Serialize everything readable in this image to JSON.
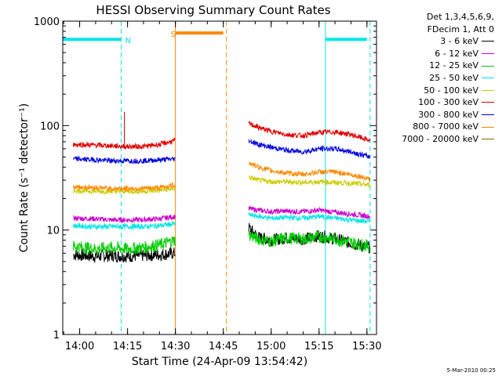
{
  "chart_data": {
    "type": "line",
    "title": "HESSI Observing Summary Count Rates",
    "xlabel": "Start Time (24-Apr-09 13:54:42)",
    "ylabel": "Count Rate (s⁻¹ detector⁻¹)",
    "yscale": "log",
    "ylim": [
      1,
      1000
    ],
    "xlim": [
      "13:54:42",
      "15:33:00"
    ],
    "x_tick_labels": [
      "14:00",
      "14:15",
      "14:30",
      "14:45",
      "15:00",
      "15:15",
      "15:30"
    ],
    "y_tick_labels": [
      "1",
      "10",
      "100",
      "1000"
    ],
    "legend_header": [
      "Det 1,3,4,5,6,9,",
      "FDecim 1, Att 0"
    ],
    "legend_position": "top-right",
    "series": [
      {
        "name": "3 - 6 keV",
        "color": "#000000",
        "x": [
          "13:58",
          "14:05",
          "14:10",
          "14:15",
          "14:20",
          "14:25",
          "14:30",
          "14:53",
          "14:56",
          "15:00",
          "15:05",
          "15:10",
          "15:15",
          "15:20",
          "15:25",
          "15:31"
        ],
        "values": [
          5.8,
          5.6,
          5.7,
          5.6,
          5.7,
          5.8,
          6.0,
          10.5,
          8.5,
          8.0,
          8.4,
          8.2,
          8.8,
          8.2,
          7.5,
          6.8
        ]
      },
      {
        "name": "6 - 12 keV",
        "color": "#cc00cc",
        "x": [
          "13:58",
          "14:05",
          "14:10",
          "14:15",
          "14:20",
          "14:25",
          "14:30",
          "14:53",
          "14:56",
          "15:00",
          "15:05",
          "15:10",
          "15:15",
          "15:20",
          "15:25",
          "15:31"
        ],
        "values": [
          13,
          12.8,
          12.5,
          12.5,
          12.6,
          12.8,
          13.5,
          16,
          15.5,
          15,
          15.2,
          15,
          15.5,
          14.8,
          14.2,
          13.5
        ]
      },
      {
        "name": "12 - 25 keV",
        "color": "#00cc00",
        "x": [
          "13:58",
          "14:05",
          "14:10",
          "14:15",
          "14:20",
          "14:25",
          "14:30",
          "14:53",
          "14:56",
          "15:00",
          "15:05",
          "15:10",
          "15:15",
          "15:20",
          "15:25",
          "15:31"
        ],
        "values": [
          7.0,
          6.6,
          6.8,
          6.6,
          6.8,
          7.2,
          8.0,
          9.0,
          8.2,
          7.8,
          8.4,
          8.2,
          8.6,
          8.2,
          7.6,
          7.0
        ]
      },
      {
        "name": "25 - 50 keV",
        "color": "#00e5e5",
        "x": [
          "13:58",
          "14:05",
          "14:10",
          "14:15",
          "14:20",
          "14:25",
          "14:30",
          "14:53",
          "14:56",
          "15:00",
          "15:05",
          "15:10",
          "15:15",
          "15:20",
          "15:25",
          "15:31"
        ],
        "values": [
          11,
          10.8,
          10.8,
          10.8,
          10.8,
          11,
          11.5,
          14,
          13.5,
          13,
          13.2,
          13,
          13.5,
          13,
          12.5,
          12
        ]
      },
      {
        "name": "50 - 100 keV",
        "color": "#cccc00",
        "x": [
          "13:58",
          "14:05",
          "14:10",
          "14:15",
          "14:20",
          "14:25",
          "14:30",
          "14:53",
          "14:56",
          "15:00",
          "15:05",
          "15:10",
          "15:15",
          "15:20",
          "15:25",
          "15:31"
        ],
        "values": [
          24,
          23.5,
          23.5,
          23.5,
          23.5,
          24,
          25,
          32,
          30,
          29,
          29,
          28.5,
          29,
          28.5,
          28,
          27
        ]
      },
      {
        "name": "100 - 300 keV",
        "color": "#dd0000",
        "x": [
          "13:58",
          "14:05",
          "14:10",
          "14:15",
          "14:20",
          "14:25",
          "14:30",
          "14:53",
          "14:56",
          "15:00",
          "15:05",
          "15:10",
          "15:15",
          "15:20",
          "15:25",
          "15:31"
        ],
        "values": [
          66,
          65,
          64,
          63,
          63,
          66,
          72,
          105,
          96,
          88,
          82,
          80,
          86,
          87,
          82,
          72
        ]
      },
      {
        "name": "300 - 800 keV",
        "color": "#0000dd",
        "x": [
          "13:58",
          "14:05",
          "14:10",
          "14:15",
          "14:20",
          "14:25",
          "14:30",
          "14:53",
          "14:56",
          "15:00",
          "15:05",
          "15:10",
          "15:15",
          "15:20",
          "15:25",
          "15:31"
        ],
        "values": [
          48,
          47,
          46,
          46,
          46,
          47,
          48,
          72,
          66,
          62,
          58,
          56,
          60,
          60,
          56,
          50
        ]
      },
      {
        "name": "800 - 7000 keV",
        "color": "#ff8800",
        "x": [
          "13:58",
          "14:05",
          "14:10",
          "14:15",
          "14:20",
          "14:25",
          "14:30",
          "14:53",
          "14:56",
          "15:00",
          "15:05",
          "15:10",
          "15:15",
          "15:20",
          "15:25",
          "15:31"
        ],
        "values": [
          26,
          25.5,
          25,
          25,
          25,
          25.5,
          27,
          44,
          40,
          37,
          35,
          34,
          36,
          36,
          34,
          31
        ]
      },
      {
        "name": "7000 - 20000 keV",
        "color": "#886600",
        "x": [],
        "values": []
      }
    ],
    "spike": {
      "x": "14:14",
      "value": 135,
      "color": "#dd0000"
    },
    "flag_bars": [
      {
        "label": "",
        "color": "#00e5e5",
        "x": [
          "13:54:42",
          "14:13"
        ],
        "value": 670
      },
      {
        "label": "N",
        "color": "#00e5e5",
        "x": [
          "14:13",
          "14:13"
        ],
        "value": 670
      },
      {
        "label": "S",
        "color": "#ff8800",
        "x": [
          "14:30",
          "14:45"
        ],
        "value": 770
      },
      {
        "label": "",
        "color": "#00e5e5",
        "x": [
          "15:17",
          "15:30"
        ],
        "value": 670
      }
    ],
    "vlines": [
      {
        "x": "13:54:42",
        "color": "#00e5e5",
        "style": "solid"
      },
      {
        "x": "14:13",
        "color": "#00e5e5",
        "style": "dashed"
      },
      {
        "x": "14:30",
        "color": "#ff8800",
        "style": "solid"
      },
      {
        "x": "14:46",
        "color": "#ff8800",
        "style": "dashed"
      },
      {
        "x": "15:17",
        "color": "#00e5e5",
        "style": "solid"
      },
      {
        "x": "15:31",
        "color": "#00e5e5",
        "style": "dashed"
      }
    ]
  },
  "legend": {
    "header1": "Det 1,3,4,5,6,9,",
    "header2": "FDecim 1, Att 0",
    "items": [
      {
        "label": "3 - 6 keV",
        "color": "#000000"
      },
      {
        "label": "6 - 12 keV",
        "color": "#cc00cc"
      },
      {
        "label": "12 - 25 keV",
        "color": "#00cc00"
      },
      {
        "label": "25 - 50 keV",
        "color": "#00e5e5"
      },
      {
        "label": "50 - 100 keV",
        "color": "#cccc00"
      },
      {
        "label": "100 - 300 keV",
        "color": "#dd0000"
      },
      {
        "label": "300 - 800 keV",
        "color": "#0000dd"
      },
      {
        "label": "800 - 7000 keV",
        "color": "#ff8800"
      },
      {
        "label": "7000 - 20000 keV",
        "color": "#886600"
      }
    ]
  },
  "footer": "5-Mar-2010 00:25"
}
